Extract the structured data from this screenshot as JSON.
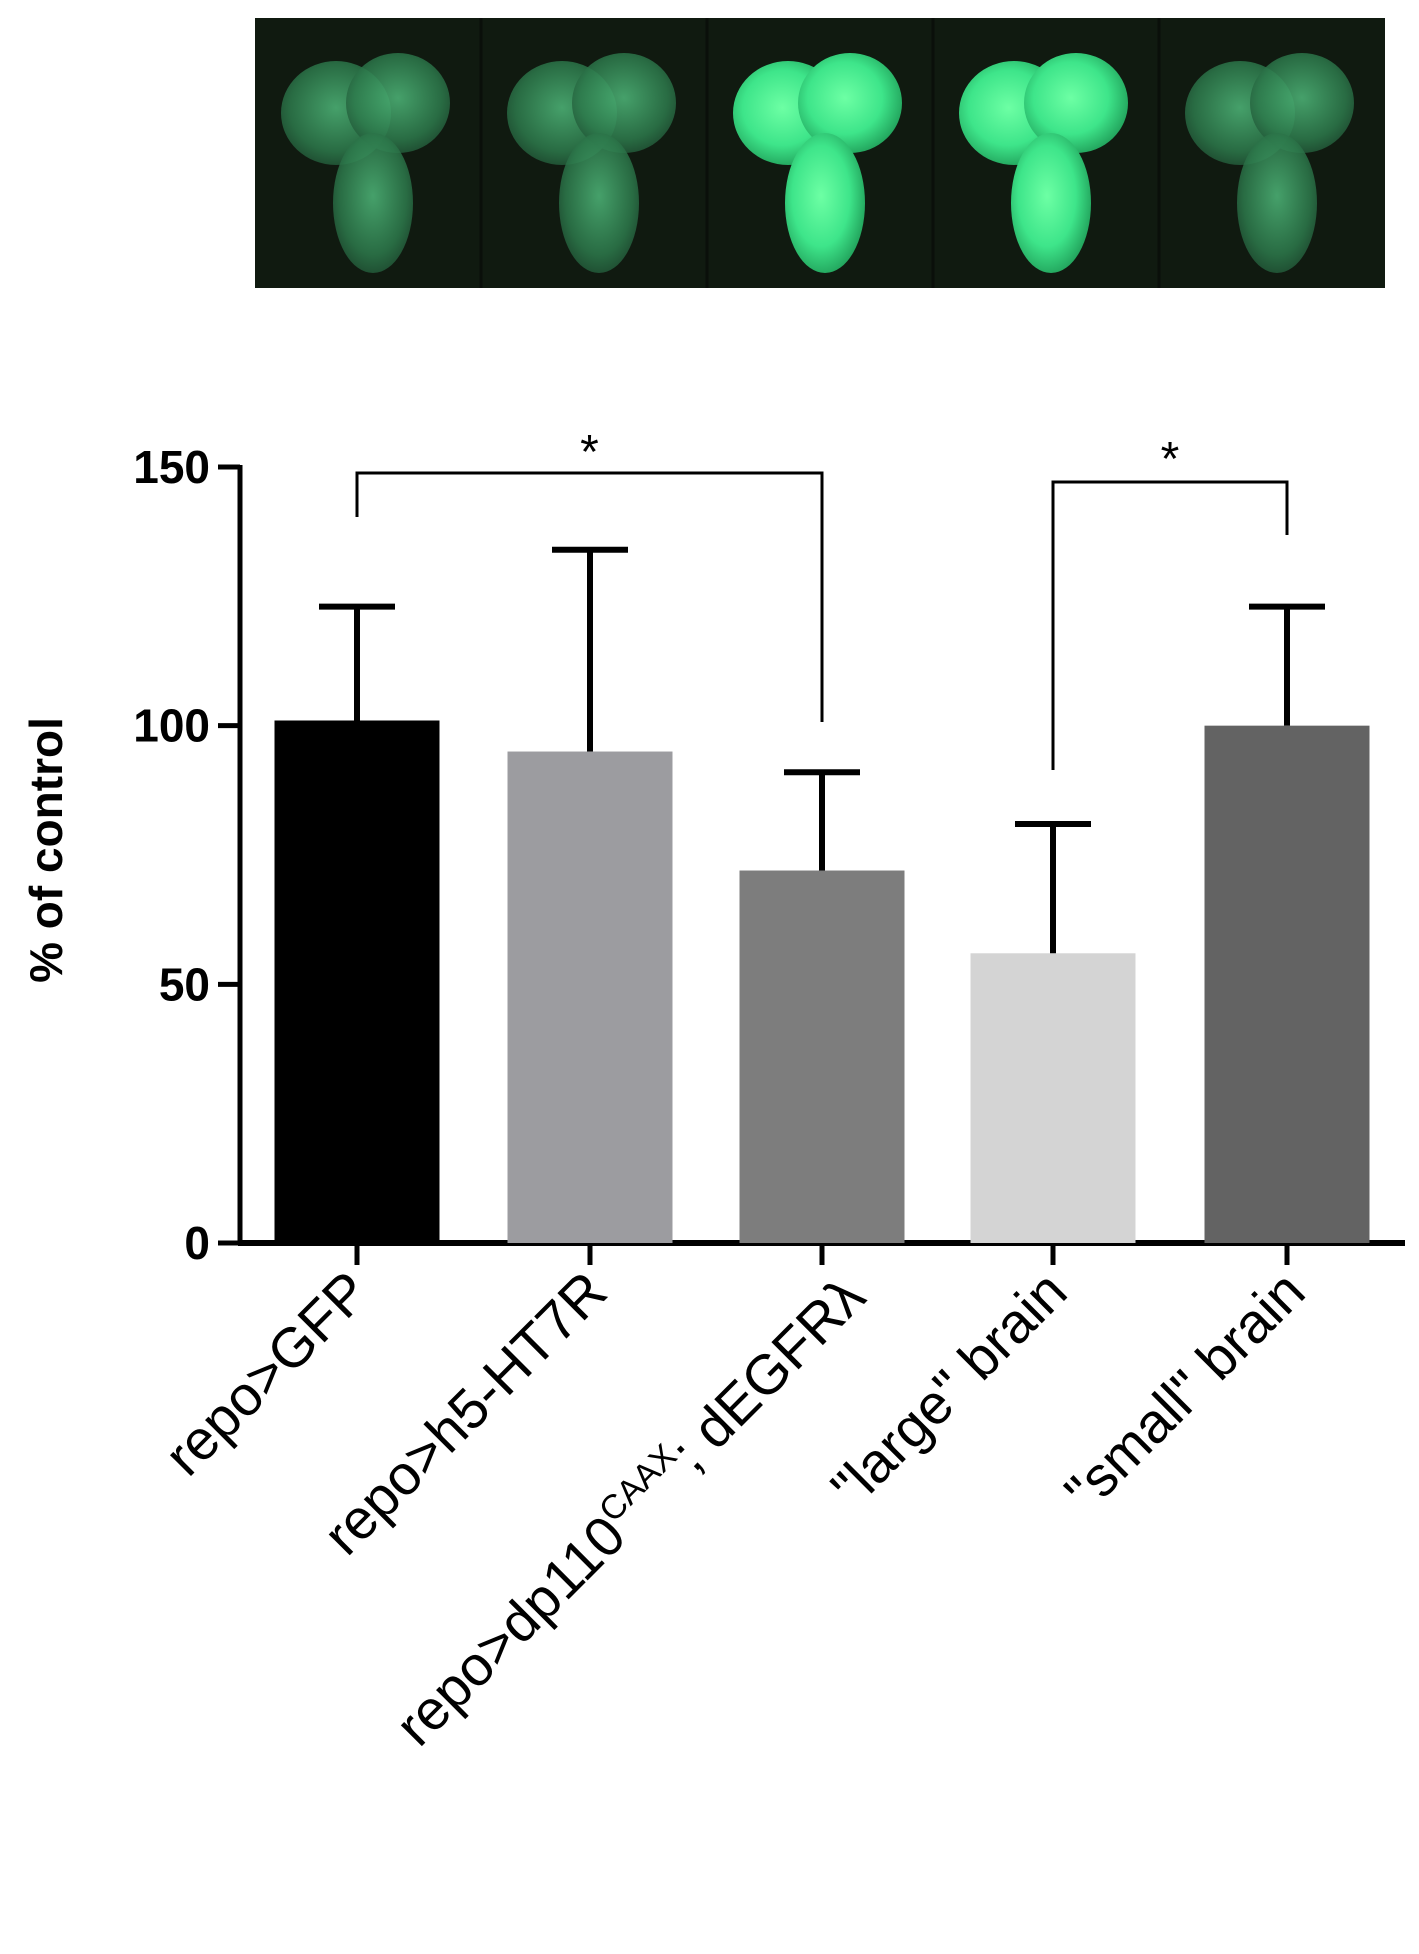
{
  "figure": {
    "micrograph_panels": [
      {
        "label": "",
        "brightness": "dim"
      },
      {
        "label": "",
        "brightness": "dim"
      },
      {
        "label": "",
        "brightness": "bright"
      },
      {
        "label": "",
        "brightness": "bright"
      },
      {
        "label": "",
        "brightness": "dim"
      }
    ],
    "colors": {
      "micrograph_background": "#101a10",
      "fluorescence_green": "#3cf08a",
      "axis": "#000000"
    }
  },
  "chart_data": {
    "type": "bar",
    "title": "",
    "xlabel": "",
    "ylabel": "% of control",
    "ylim": [
      0,
      150
    ],
    "yticks": [
      0,
      50,
      100,
      150
    ],
    "categories": [
      {
        "text": "repo>GFP",
        "sup": "",
        "tail": ""
      },
      {
        "text": "repo>h5-HT7R",
        "sup": "",
        "tail": ""
      },
      {
        "text": "repo>dp110",
        "sup": "CAAX",
        "tail": "; dEGFRλ"
      },
      {
        "text": "\"large\" brain",
        "sup": "",
        "tail": ""
      },
      {
        "text": "\"small\" brain",
        "sup": "",
        "tail": ""
      }
    ],
    "values": [
      101,
      95,
      72,
      56,
      100
    ],
    "errors": [
      22,
      39,
      19,
      25,
      23
    ],
    "bar_colors": [
      "#000000",
      "#9c9ca0",
      "#7d7d7d",
      "#d4d4d4",
      "#636363"
    ],
    "significance": [
      {
        "from": 0,
        "to": 2,
        "label": "*"
      },
      {
        "from": 3,
        "to": 4,
        "label": "*"
      }
    ],
    "grid": false,
    "legend": "none"
  }
}
